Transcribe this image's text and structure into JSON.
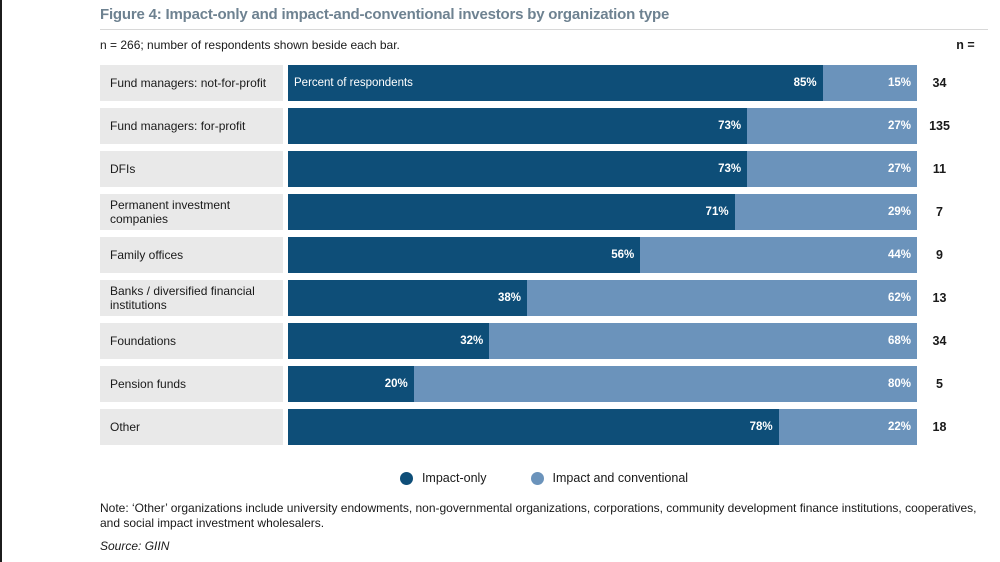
{
  "title": "Figure 4: Impact-only and impact-and-conventional investors by organization type",
  "subtitle": "n = 266; number of respondents shown beside each bar.",
  "n_header": "n =",
  "first_bar_annotation": "Percent of respondents",
  "legend": [
    {
      "label": "Impact-only",
      "color": "#0e4e78"
    },
    {
      "label": "Impact and conventional",
      "color": "#6b93bb"
    }
  ],
  "note": "Note: ‘Other’ organizations include university endowments, non-governmental organizations, corporations, community development finance institutions, cooperatives, and social impact investment wholesalers.",
  "source": "Source: GIIN",
  "chart_data": {
    "type": "bar",
    "orientation": "horizontal",
    "stacked": true,
    "unit": "percent",
    "xlim": [
      0,
      100
    ],
    "grid": false,
    "legend_position": "bottom",
    "categories": [
      "Fund managers: not-for-profit",
      "Fund managers: for-profit",
      "DFIs",
      "Permanent investment companies",
      "Family offices",
      "Banks / diversified financial institutions",
      "Foundations",
      "Pension funds",
      "Other"
    ],
    "series": [
      {
        "name": "Impact-only",
        "color": "#0e4e78",
        "values": [
          85,
          73,
          73,
          71,
          56,
          38,
          32,
          20,
          78
        ]
      },
      {
        "name": "Impact and conventional",
        "color": "#6b93bb",
        "values": [
          15,
          27,
          27,
          29,
          44,
          62,
          68,
          80,
          22
        ]
      }
    ],
    "n_values": [
      34,
      135,
      11,
      7,
      9,
      13,
      34,
      5,
      18
    ]
  }
}
